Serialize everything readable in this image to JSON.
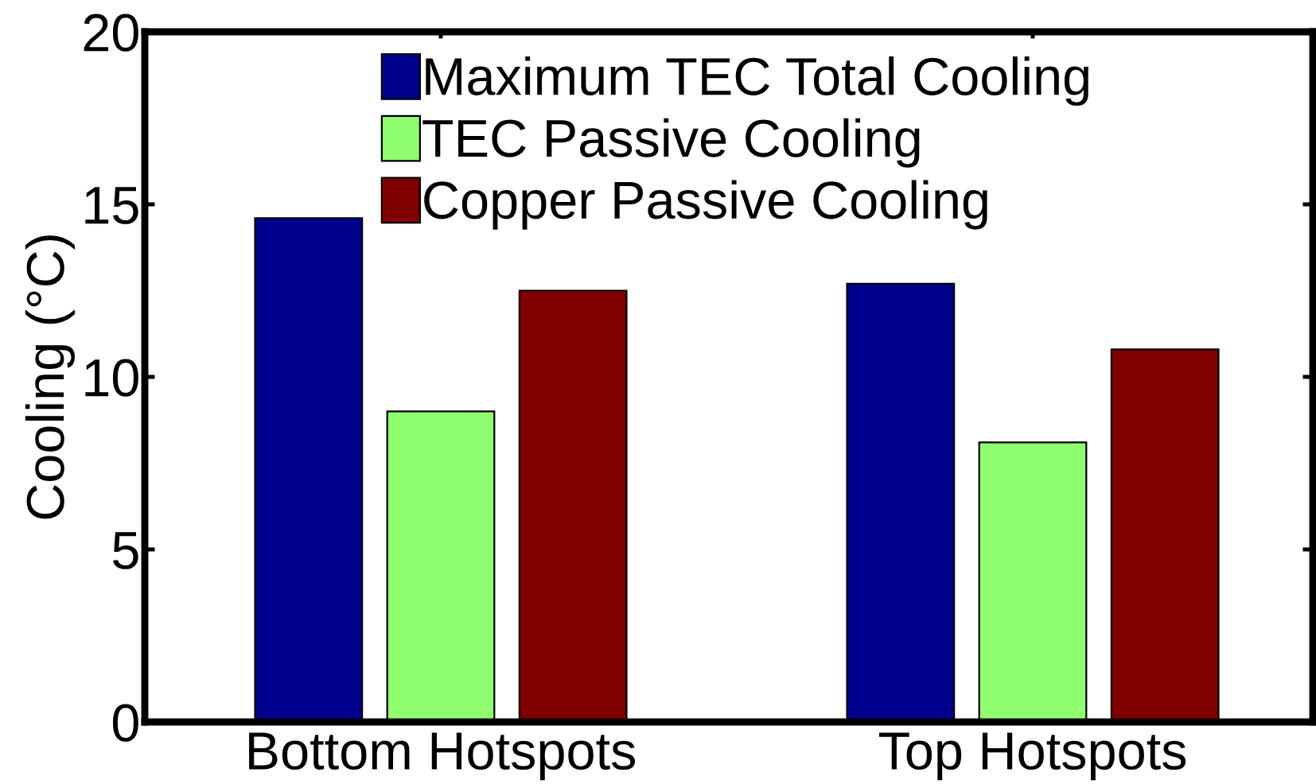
{
  "chart_data": {
    "type": "bar",
    "ylabel": "Cooling (°C)",
    "categories": [
      "Bottom Hotspots",
      "Top Hotspots"
    ],
    "series": [
      {
        "name": "Maximum TEC Total Cooling",
        "color": "#00008f",
        "values": [
          14.6,
          12.7
        ]
      },
      {
        "name": "TEC Passive Cooling",
        "color": "#8fff6f",
        "values": [
          9.0,
          8.1
        ]
      },
      {
        "name": "Copper Passive Cooling",
        "color": "#800000",
        "values": [
          12.5,
          10.8
        ]
      }
    ],
    "ylim": [
      0,
      20
    ],
    "yticks": [
      0,
      5,
      10,
      15,
      20
    ],
    "legend": "top"
  }
}
